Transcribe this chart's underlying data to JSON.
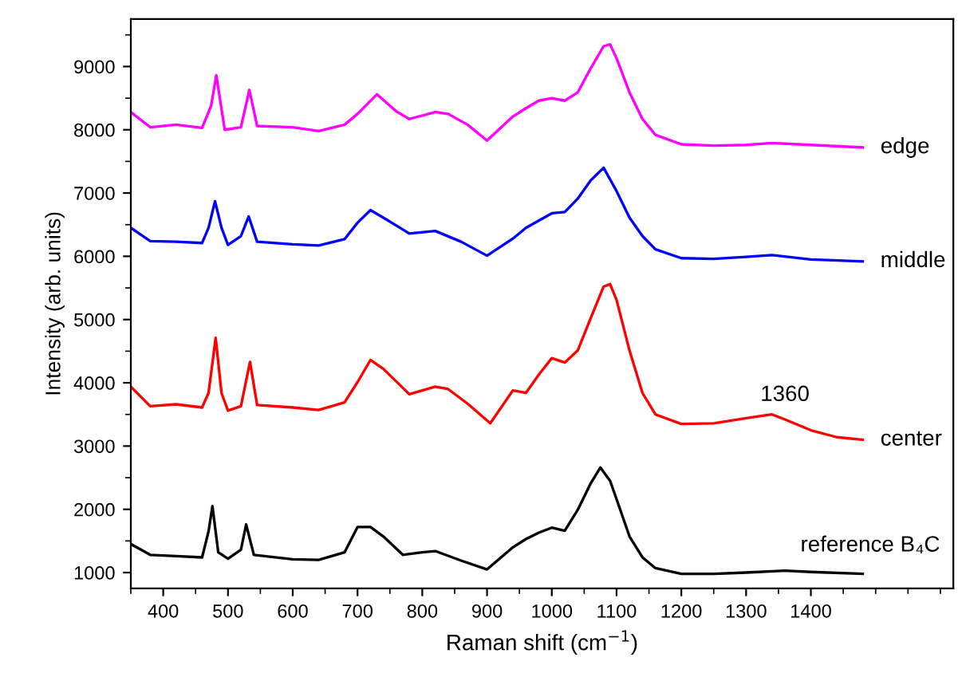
{
  "chart_data": {
    "type": "line",
    "xlabel": "Raman shift (cm$^{−1}$)",
    "ylabel": "Intensity (arb. units)",
    "xlim": [
      350,
      1620
    ],
    "ylim": [
      750,
      9750
    ],
    "xticks": [
      400,
      500,
      600,
      700,
      800,
      900,
      1000,
      1100,
      1200,
      1300,
      1400
    ],
    "yticks": [
      1000,
      2000,
      3000,
      4000,
      5000,
      6000,
      7000,
      8000,
      9000
    ],
    "grid": false,
    "marker": "none",
    "line_style": "solid",
    "annotations": [
      {
        "text": "1360",
        "x": 1360,
        "y": 3500
      }
    ],
    "series": [
      {
        "name": "edge",
        "color": "#ff00ff",
        "x": [
          350,
          380,
          420,
          460,
          474,
          482,
          495,
          520,
          533,
          545,
          600,
          640,
          680,
          700,
          730,
          760,
          780,
          820,
          840,
          870,
          900,
          940,
          960,
          980,
          1000,
          1020,
          1040,
          1060,
          1080,
          1090,
          1100,
          1120,
          1140,
          1160,
          1200,
          1250,
          1300,
          1340,
          1400,
          1480
        ],
        "values": [
          8280,
          8040,
          8080,
          8030,
          8380,
          8860,
          8000,
          8040,
          8630,
          8060,
          8040,
          7980,
          8080,
          8250,
          8560,
          8290,
          8170,
          8280,
          8250,
          8080,
          7830,
          8210,
          8340,
          8460,
          8500,
          8460,
          8590,
          8970,
          9320,
          9350,
          9130,
          8590,
          8170,
          7920,
          7770,
          7750,
          7760,
          7790,
          7760,
          7720
        ]
      },
      {
        "name": "middle",
        "color": "#0000ff",
        "x": [
          350,
          380,
          420,
          460,
          470,
          480,
          490,
          500,
          520,
          532,
          545,
          600,
          640,
          680,
          700,
          720,
          740,
          780,
          820,
          860,
          900,
          940,
          960,
          1000,
          1020,
          1040,
          1060,
          1080,
          1100,
          1120,
          1140,
          1160,
          1200,
          1250,
          1300,
          1340,
          1400,
          1480
        ],
        "values": [
          6450,
          6240,
          6230,
          6210,
          6450,
          6870,
          6450,
          6180,
          6320,
          6630,
          6230,
          6190,
          6170,
          6270,
          6530,
          6730,
          6610,
          6360,
          6400,
          6230,
          6010,
          6280,
          6450,
          6680,
          6700,
          6910,
          7200,
          7400,
          7030,
          6610,
          6320,
          6110,
          5970,
          5960,
          5990,
          6020,
          5950,
          5920
        ]
      },
      {
        "name": "center",
        "color": "#ff0000",
        "x": [
          350,
          380,
          420,
          460,
          470,
          481,
          490,
          500,
          520,
          534,
          545,
          600,
          640,
          680,
          700,
          720,
          740,
          780,
          820,
          840,
          870,
          905,
          940,
          960,
          980,
          1000,
          1020,
          1040,
          1060,
          1080,
          1090,
          1100,
          1120,
          1140,
          1160,
          1200,
          1250,
          1300,
          1340,
          1360,
          1400,
          1440,
          1480
        ],
        "values": [
          3940,
          3630,
          3660,
          3610,
          3840,
          4710,
          3840,
          3560,
          3630,
          4330,
          3650,
          3610,
          3570,
          3690,
          4010,
          4360,
          4220,
          3820,
          3940,
          3900,
          3670,
          3360,
          3880,
          3840,
          4130,
          4390,
          4320,
          4510,
          5020,
          5520,
          5560,
          5310,
          4510,
          3840,
          3500,
          3350,
          3360,
          3440,
          3500,
          3420,
          3250,
          3140,
          3100
        ]
      },
      {
        "name": "reference B₄C",
        "color": "#000000",
        "x": [
          350,
          380,
          420,
          460,
          470,
          476,
          485,
          500,
          520,
          528,
          540,
          600,
          640,
          680,
          700,
          720,
          740,
          770,
          800,
          820,
          860,
          900,
          940,
          960,
          980,
          1000,
          1020,
          1040,
          1060,
          1075,
          1090,
          1100,
          1120,
          1140,
          1160,
          1200,
          1250,
          1300,
          1360,
          1400,
          1480
        ],
        "values": [
          1450,
          1280,
          1260,
          1240,
          1650,
          2050,
          1320,
          1220,
          1360,
          1760,
          1280,
          1210,
          1200,
          1320,
          1720,
          1720,
          1570,
          1280,
          1320,
          1340,
          1190,
          1050,
          1400,
          1530,
          1630,
          1710,
          1660,
          1990,
          2410,
          2660,
          2450,
          2160,
          1570,
          1240,
          1070,
          980,
          980,
          1000,
          1030,
          1010,
          980
        ]
      }
    ]
  }
}
